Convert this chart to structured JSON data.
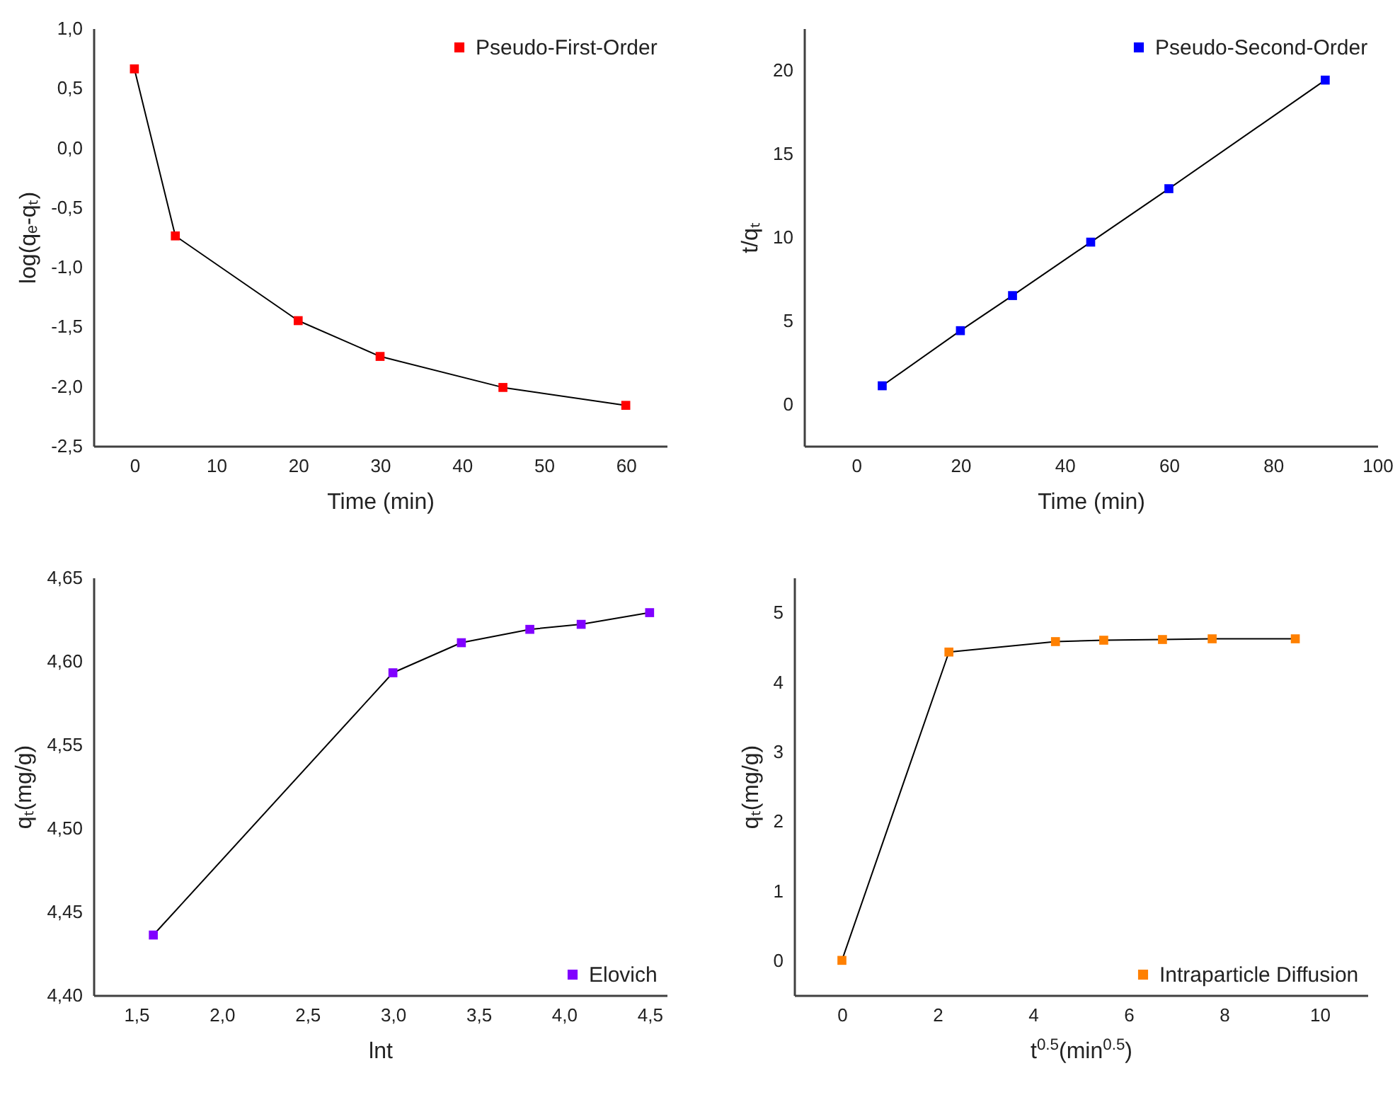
{
  "chart_data": [
    {
      "type": "line",
      "xlabel": "Time (min)",
      "ylabel": "log(qₑ-qₜ)",
      "x": [
        0,
        5,
        20,
        30,
        45,
        60
      ],
      "series": [
        {
          "name": "Pseudo-First-Order",
          "color": "#ff0000",
          "values": [
            0.66,
            -0.74,
            -1.45,
            -1.75,
            -2.01,
            -2.16
          ]
        }
      ],
      "xlim": [
        -5,
        65
      ],
      "xticks": [
        0,
        10,
        20,
        30,
        40,
        50,
        60
      ],
      "ylim": [
        -2.5,
        1.0
      ],
      "yticks": [
        {
          "value": -2.5,
          "label": "-2,5"
        },
        {
          "value": -2.0,
          "label": "-2,0"
        },
        {
          "value": -1.5,
          "label": "-1,5"
        },
        {
          "value": -1.0,
          "label": "-1,0"
        },
        {
          "value": -0.5,
          "label": "-0,5"
        },
        {
          "value": 0,
          "label": "0,0"
        },
        {
          "value": 0.5,
          "label": "0,5"
        },
        {
          "value": 1.0,
          "label": "1,0"
        }
      ],
      "grid": false,
      "legend": "top right",
      "marker": "square",
      "line_style": "solid"
    },
    {
      "type": "line",
      "xlabel": "Time (min)",
      "ylabel": "t/qₜ",
      "x": [
        5,
        20,
        30,
        45,
        60,
        90
      ],
      "series": [
        {
          "name": "Pseudo-Second-Order",
          "color": "#0000ff",
          "values": [
            1.1,
            4.4,
            6.5,
            9.7,
            12.9,
            19.4
          ]
        }
      ],
      "xlim": [
        -10,
        100
      ],
      "xticks": [
        0,
        20,
        40,
        60,
        80,
        100
      ],
      "ylim": [
        -2.5,
        22.5
      ],
      "yticks": [
        0,
        5,
        10,
        15,
        20
      ],
      "grid": false,
      "legend": "top right",
      "marker": "square",
      "line_style": "solid"
    },
    {
      "type": "line",
      "xlabel": "lnt",
      "ylabel": "qₜ(mg/g)",
      "x": [
        1.6,
        3.0,
        3.4,
        3.8,
        4.1,
        4.5
      ],
      "series": [
        {
          "name": "Elovich",
          "color": "#8000ff",
          "values": [
            4.436,
            4.593,
            4.611,
            4.619,
            4.622,
            4.629
          ]
        }
      ],
      "xlim": [
        1.25,
        4.6
      ],
      "xticks": [
        {
          "value": 1.5,
          "label": "1,5"
        },
        {
          "value": 2.0,
          "label": "2,0"
        },
        {
          "value": 2.5,
          "label": "2,5"
        },
        {
          "value": 3.0,
          "label": "3,0"
        },
        {
          "value": 3.5,
          "label": "3,5"
        },
        {
          "value": 4.0,
          "label": "4,0"
        },
        {
          "value": 4.5,
          "label": "4,5"
        }
      ],
      "ylim": [
        4.4,
        4.65
      ],
      "yticks": [
        {
          "value": 4.4,
          "label": "4,40"
        },
        {
          "value": 4.45,
          "label": "4,45"
        },
        {
          "value": 4.5,
          "label": "4,50"
        },
        {
          "value": 4.55,
          "label": "4,55"
        },
        {
          "value": 4.6,
          "label": "4,60"
        },
        {
          "value": 4.65,
          "label": "4,65"
        }
      ],
      "grid": false,
      "legend": "bottom right",
      "marker": "square",
      "line_style": "solid"
    },
    {
      "type": "line",
      "xlabel": "t$^{0.5}$(min$^{0.5}$)",
      "ylabel": "qₜ(mg/g)",
      "x": [
        0,
        2.24,
        4.47,
        5.48,
        6.71,
        7.75,
        9.49
      ],
      "series": [
        {
          "name": "Intraparticle Diffusion",
          "color": "#ff8000",
          "values": [
            0,
            4.43,
            4.58,
            4.6,
            4.61,
            4.62,
            4.62
          ]
        }
      ],
      "xlim": [
        -1,
        11
      ],
      "xticks": [
        0,
        2,
        4,
        6,
        8,
        10
      ],
      "ylim": [
        -0.5,
        5.5
      ],
      "yticks": [
        0,
        1,
        2,
        3,
        4,
        5
      ],
      "grid": false,
      "legend": "bottom right",
      "marker": "square",
      "line_style": "solid"
    }
  ]
}
